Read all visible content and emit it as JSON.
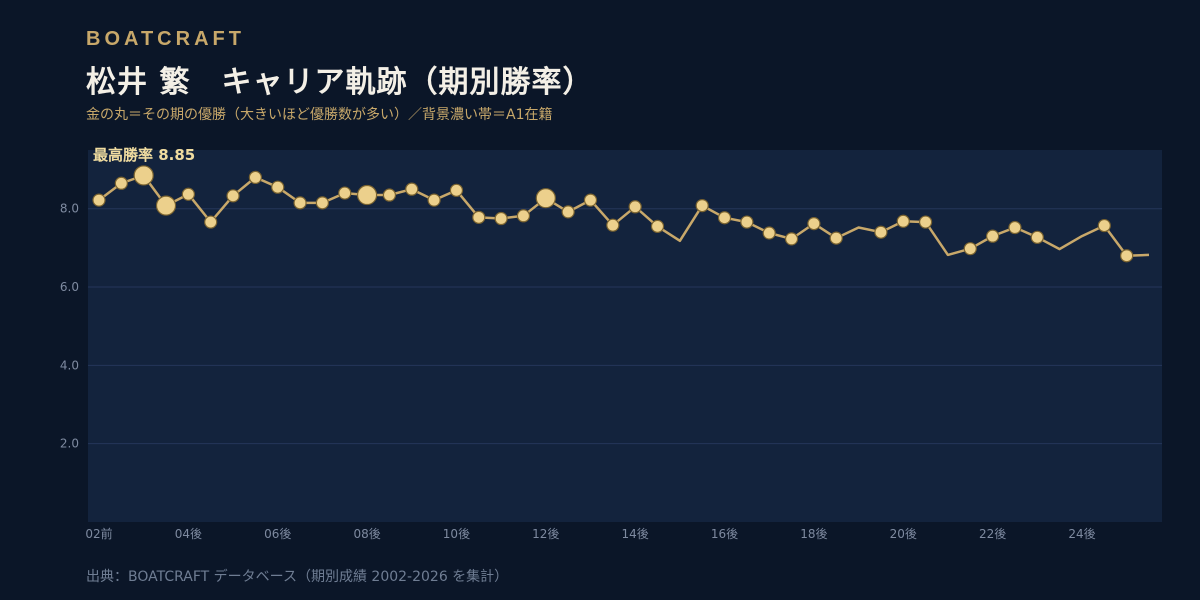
{
  "header": {
    "brand": "BOATCRAFT",
    "title": "松井 繁　キャリア軌跡（期別勝率）",
    "subtitle": "金の丸＝その期の優勝（大きいほど優勝数が多い）／背景濃い帯＝A1在籍"
  },
  "footer": {
    "source": "出典：BOATCRAFT データベース（期別成績 2002-2026 を集計）"
  },
  "colors": {
    "background": "#0b1628",
    "plot_band": "#13233d",
    "line": "#c8a86a",
    "dot": "#ecd08c",
    "dot_stroke": "#7a6330"
  },
  "chart_data": {
    "type": "line",
    "title": "",
    "xlabel": "",
    "ylabel": "",
    "ylim": [
      0,
      9.5
    ],
    "yticks": [
      2.0,
      4.0,
      6.0,
      8.0
    ],
    "grid": true,
    "annotation": "最高勝率 8.85",
    "x_tick_labels": [
      {
        "index": 0,
        "label": "02前"
      },
      {
        "index": 4,
        "label": "04後"
      },
      {
        "index": 8,
        "label": "06後"
      },
      {
        "index": 12,
        "label": "08後"
      },
      {
        "index": 16,
        "label": "10後"
      },
      {
        "index": 20,
        "label": "12後"
      },
      {
        "index": 24,
        "label": "14後"
      },
      {
        "index": 28,
        "label": "16後"
      },
      {
        "index": 32,
        "label": "18後"
      },
      {
        "index": 36,
        "label": "20後"
      },
      {
        "index": 40,
        "label": "22後"
      },
      {
        "index": 44,
        "label": "24後"
      }
    ],
    "series": [
      {
        "values": [
          8.22,
          8.65,
          8.85,
          8.08,
          8.37,
          7.66,
          8.33,
          8.8,
          8.55,
          8.15,
          8.15,
          8.4,
          8.35,
          8.35,
          8.5,
          8.22,
          8.47,
          7.78,
          7.75,
          7.82,
          8.27,
          7.92,
          8.22,
          7.58,
          8.05,
          7.55,
          7.18,
          8.08,
          7.77,
          7.66,
          7.38,
          7.23,
          7.62,
          7.25,
          7.52,
          7.4,
          7.68,
          7.66,
          6.82,
          6.98,
          7.3,
          7.52,
          7.27,
          6.97,
          7.3,
          7.57,
          6.8,
          6.82
        ],
        "championships": [
          1,
          1,
          2,
          2,
          1,
          1,
          1,
          1,
          1,
          1,
          1,
          1,
          2,
          1,
          1,
          1,
          1,
          1,
          1,
          1,
          2,
          1,
          1,
          1,
          1,
          1,
          0,
          1,
          1,
          1,
          1,
          1,
          1,
          1,
          0,
          1,
          1,
          1,
          0,
          1,
          1,
          1,
          1,
          0,
          0,
          1,
          1,
          0
        ]
      }
    ]
  }
}
